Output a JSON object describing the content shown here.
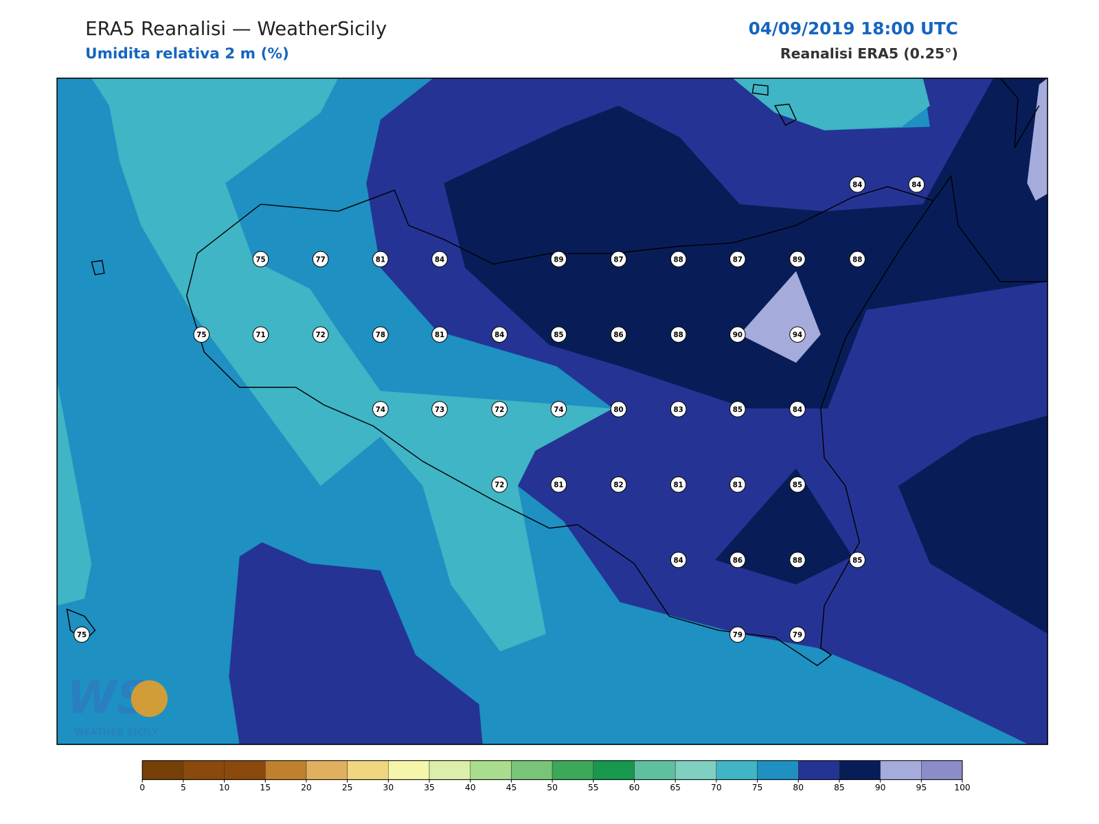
{
  "header": {
    "title": "ERA5 Reanalisi — WeatherSicily",
    "subtitle": "Umidita relativa 2 m (%)",
    "datetime": "04/09/2019 18:00 UTC",
    "source": "Reanalisi ERA5 (0.25°)"
  },
  "stations": {
    "values": [
      84,
      84,
      75,
      77,
      81,
      84,
      89,
      87,
      88,
      87,
      89,
      88,
      75,
      71,
      72,
      78,
      81,
      84,
      85,
      86,
      88,
      90,
      94,
      74,
      73,
      72,
      74,
      80,
      83,
      85,
      84,
      72,
      81,
      82,
      81,
      81,
      85,
      84,
      86,
      88,
      85,
      75,
      79,
      79
    ]
  },
  "colorbar": {
    "ticks": [
      0,
      5,
      10,
      15,
      20,
      25,
      30,
      35,
      40,
      45,
      50,
      55,
      60,
      65,
      70,
      75,
      80,
      85,
      90,
      95,
      100
    ],
    "colors": [
      "#764006",
      "#8a4a0c",
      "#8a4a0c",
      "#c0802e",
      "#e0b05e",
      "#f0d67e",
      "#f6f6aa",
      "#dcefaa",
      "#aadc8e",
      "#78c478",
      "#3ca85a",
      "#17984e",
      "#5fc0a0",
      "#80d0c2",
      "#3fb5c5",
      "#1e90c2",
      "#253494",
      "#081d58",
      "#a5acdc",
      "#8c8cc8"
    ]
  },
  "logo": {
    "mark": "WS",
    "text": "WEATHER SICILY"
  }
}
